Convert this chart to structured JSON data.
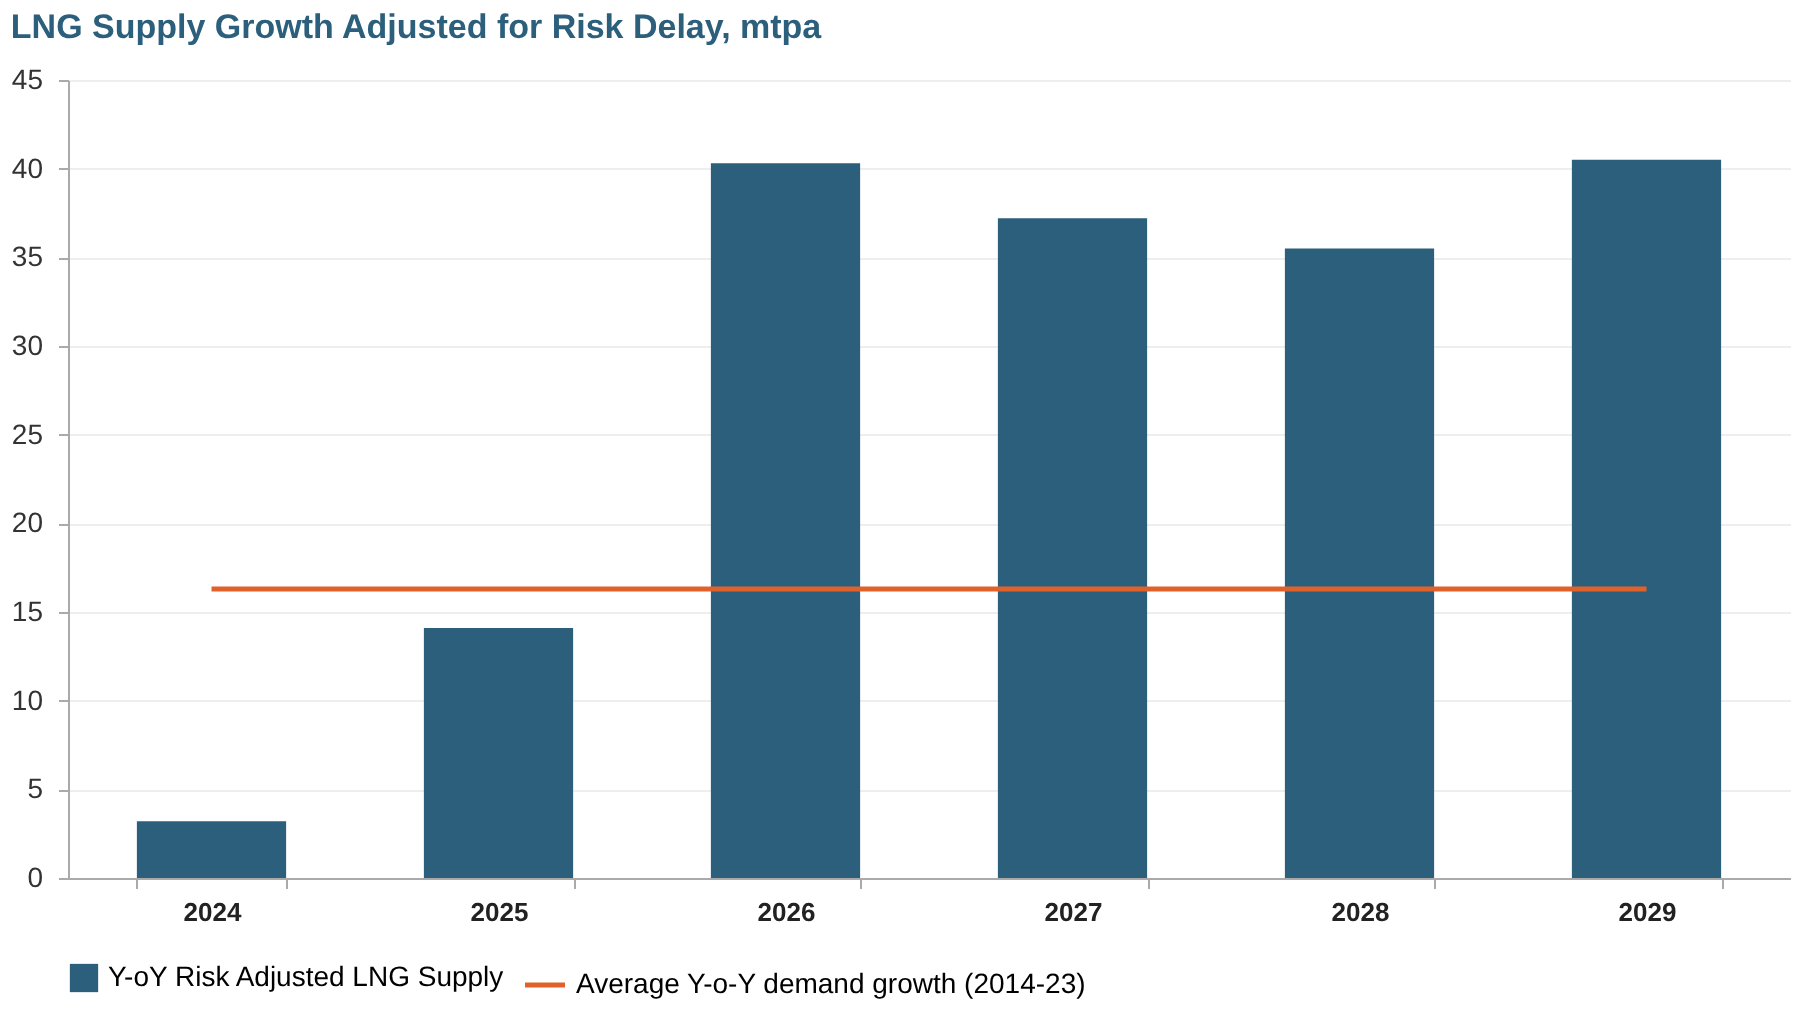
{
  "chart_data": {
    "type": "bar",
    "title": "LNG Supply Growth Adjusted for Risk Delay, mtpa",
    "categories": [
      "2024",
      "2025",
      "2026",
      "2027",
      "2028",
      "2029"
    ],
    "series": [
      {
        "name": "Y-oY Risk Adjusted LNG Supply",
        "color": "#2b5f7c",
        "values": [
          3.2,
          14.1,
          40.3,
          37.2,
          35.5,
          40.5
        ]
      },
      {
        "name": "Average Y-o-Y demand growth (2014-23)",
        "type": "line",
        "color": "#e0622a",
        "values": [
          16.3,
          16.3,
          16.3,
          16.3,
          16.3,
          16.3
        ]
      }
    ],
    "ylim": [
      0,
      45
    ],
    "yticks": [
      0,
      5,
      10,
      15,
      20,
      25,
      30,
      35,
      40,
      45
    ],
    "grid": "y",
    "legend": "bottom",
    "marker": "none",
    "line_style": "solid"
  }
}
